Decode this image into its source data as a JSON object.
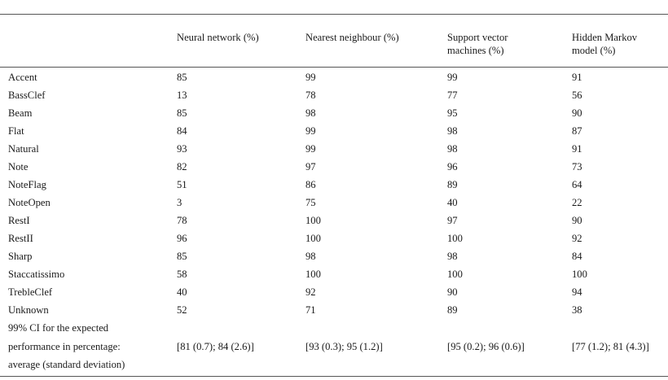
{
  "headers": [
    [
      "Neural network (%)"
    ],
    [
      "Nearest neighbour (%)"
    ],
    [
      "Support vector",
      "machines (%)"
    ],
    [
      "Hidden Markov",
      "model (%)"
    ]
  ],
  "rows": [
    {
      "label": "Accent",
      "values": [
        "85",
        "99",
        "99",
        "91"
      ]
    },
    {
      "label": "BassClef",
      "values": [
        "13",
        "78",
        "77",
        "56"
      ]
    },
    {
      "label": "Beam",
      "values": [
        "85",
        "98",
        "95",
        "90"
      ]
    },
    {
      "label": "Flat",
      "values": [
        "84",
        "99",
        "98",
        "87"
      ]
    },
    {
      "label": "Natural",
      "values": [
        "93",
        "99",
        "98",
        "91"
      ]
    },
    {
      "label": "Note",
      "values": [
        "82",
        "97",
        "96",
        "73"
      ]
    },
    {
      "label": "NoteFlag",
      "values": [
        "51",
        "86",
        "89",
        "64"
      ]
    },
    {
      "label": "NoteOpen",
      "values": [
        "3",
        "75",
        "40",
        "22"
      ]
    },
    {
      "label": "RestI",
      "values": [
        "78",
        "100",
        "97",
        "90"
      ]
    },
    {
      "label": "RestII",
      "values": [
        "96",
        "100",
        "100",
        "92"
      ]
    },
    {
      "label": "Sharp",
      "values": [
        "85",
        "98",
        "98",
        "84"
      ]
    },
    {
      "label": "Staccatissimo",
      "values": [
        "58",
        "100",
        "100",
        "100"
      ]
    },
    {
      "label": "TrebleClef",
      "values": [
        "40",
        "92",
        "90",
        "94"
      ]
    },
    {
      "label": "Unknown",
      "values": [
        "52",
        "71",
        "89",
        "38"
      ]
    }
  ],
  "ci_row": {
    "label_lines": [
      "99% CI for the expected",
      "performance in percentage:",
      "average (standard deviation)"
    ],
    "values": [
      "[81 (0.7); 84 (2.6)]",
      "[93 (0.3); 95 (1.2)]",
      "[95 (0.2); 96 (0.6)]",
      "[77 (1.2); 81 (4.3)]"
    ]
  }
}
